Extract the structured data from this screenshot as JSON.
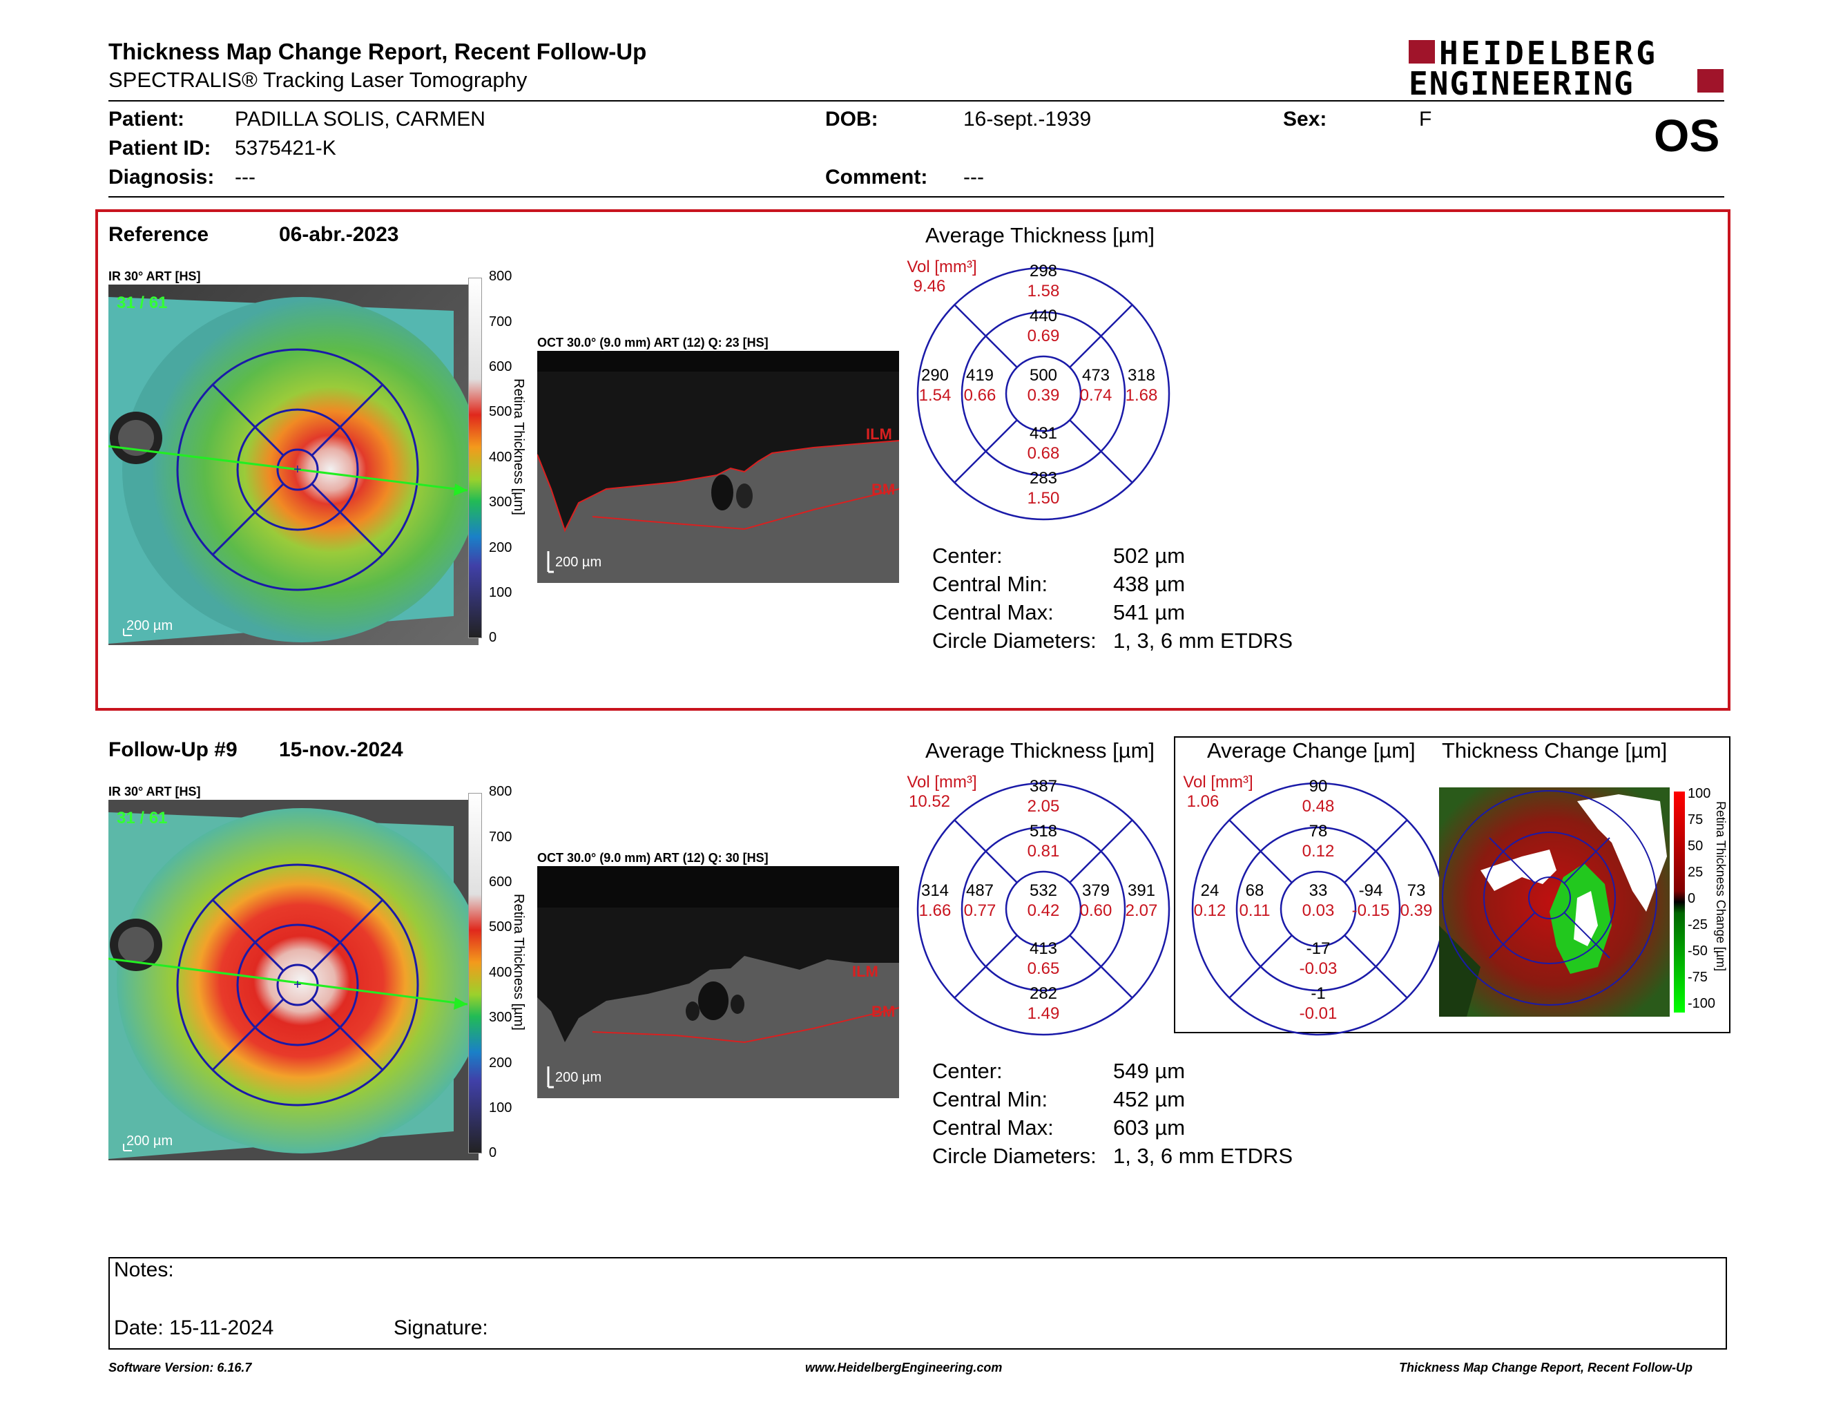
{
  "header": {
    "title": "Thickness Map Change Report, Recent Follow-Up",
    "subtitle": "SPECTRALIS® Tracking Laser Tomography",
    "logo_line1": "HEIDELBERG",
    "logo_line2": "ENGINEERING",
    "eye": "OS"
  },
  "patient": {
    "name_label": "Patient:",
    "name": "PADILLA SOLIS, CARMEN",
    "id_label": "Patient ID:",
    "id": "5375421-K",
    "diagnosis_label": "Diagnosis:",
    "diagnosis": "---",
    "dob_label": "DOB:",
    "dob": "16-sept.-1939",
    "comment_label": "Comment:",
    "comment": "---",
    "sex_label": "Sex:",
    "sex": "F"
  },
  "reference": {
    "label": "Reference",
    "date": "06-abr.-2023",
    "ir_caption": "IR 30° ART [HS]",
    "frame": "31 / 61",
    "scale": "200 µm",
    "oct_caption": "OCT 30.0° (9.0 mm) ART (12) Q: 23 [HS]",
    "oct_scale": "200 µm",
    "ilm": "ILM",
    "bm": "BM",
    "colorbar_ticks": [
      "800",
      "700",
      "600",
      "500",
      "400",
      "300",
      "200",
      "100",
      "0"
    ],
    "colorbar_label": "Retina Thickness [µm]",
    "avg_title": "Average Thickness [µm]",
    "vol_label": "Vol [mm³]",
    "vol_total": "9.46",
    "etdrs": {
      "outer_top": [
        "298",
        "1.58"
      ],
      "inner_top": [
        "440",
        "0.69"
      ],
      "outer_left": [
        "290",
        "1.54"
      ],
      "inner_left": [
        "419",
        "0.66"
      ],
      "center": [
        "500",
        "0.39"
      ],
      "inner_right": [
        "473",
        "0.74"
      ],
      "outer_right": [
        "318",
        "1.68"
      ],
      "inner_bottom": [
        "431",
        "0.68"
      ],
      "outer_bottom": [
        "283",
        "1.50"
      ]
    },
    "stats": [
      {
        "k": "Center:",
        "v": "502 µm"
      },
      {
        "k": "Central Min:",
        "v": "438 µm"
      },
      {
        "k": "Central Max:",
        "v": "541 µm"
      },
      {
        "k": "Circle Diameters:",
        "v": "1, 3, 6 mm ETDRS"
      }
    ]
  },
  "followup": {
    "label": "Follow-Up #9",
    "date": "15-nov.-2024",
    "ir_caption": "IR 30° ART [HS]",
    "frame": "31 / 61",
    "scale": "200 µm",
    "oct_caption": "OCT 30.0° (9.0 mm) ART (12) Q: 30 [HS]",
    "oct_scale": "200 µm",
    "ilm": "ILM",
    "bm": "BM",
    "colorbar_ticks": [
      "800",
      "700",
      "600",
      "500",
      "400",
      "300",
      "200",
      "100",
      "0"
    ],
    "colorbar_label": "Retina Thickness [µm]",
    "avg_title": "Average Thickness [µm]",
    "vol_label": "Vol [mm³]",
    "vol_total": "10.52",
    "etdrs": {
      "outer_top": [
        "387",
        "2.05"
      ],
      "inner_top": [
        "518",
        "0.81"
      ],
      "outer_left": [
        "314",
        "1.66"
      ],
      "inner_left": [
        "487",
        "0.77"
      ],
      "center": [
        "532",
        "0.42"
      ],
      "inner_right": [
        "379",
        "0.60"
      ],
      "outer_right": [
        "391",
        "2.07"
      ],
      "inner_bottom": [
        "413",
        "0.65"
      ],
      "outer_bottom": [
        "282",
        "1.49"
      ]
    },
    "stats": [
      {
        "k": "Center:",
        "v": "549 µm"
      },
      {
        "k": "Central Min:",
        "v": "452 µm"
      },
      {
        "k": "Central Max:",
        "v": "603 µm"
      },
      {
        "k": "Circle Diameters:",
        "v": "1, 3, 6 mm ETDRS"
      }
    ],
    "change_title": "Average Change [µm]",
    "change_vol_label": "Vol [mm³]",
    "change_vol_total": "1.06",
    "change": {
      "outer_top": [
        "90",
        "0.48"
      ],
      "inner_top": [
        "78",
        "0.12"
      ],
      "outer_left": [
        "24",
        "0.12"
      ],
      "inner_left": [
        "68",
        "0.11"
      ],
      "center": [
        "33",
        "0.03"
      ],
      "inner_right": [
        "-94",
        "-0.15"
      ],
      "outer_right": [
        "73",
        "0.39"
      ],
      "inner_bottom": [
        "-17",
        "-0.03"
      ],
      "outer_bottom": [
        "-1",
        "-0.01"
      ]
    },
    "thickness_change_title": "Thickness Change [µm]",
    "change_ticks": [
      "100",
      "75",
      "50",
      "25",
      "0",
      "-25",
      "-50",
      "-75",
      "-100"
    ],
    "change_bar_label": "Retina Thickness Change [µm]"
  },
  "notes": {
    "notes_label": "Notes:",
    "date_label": "Date: 15-11-2024",
    "signature_label": "Signature:"
  },
  "footer": {
    "version": "Software Version: 6.16.7",
    "url": "www.HeidelbergEngineering.com",
    "report": "Thickness Map Change Report, Recent Follow-Up"
  },
  "colors": {
    "accent_red": "#c8141e",
    "grid_blue": "#1a1aa8",
    "logo_red": "#a0142a"
  }
}
